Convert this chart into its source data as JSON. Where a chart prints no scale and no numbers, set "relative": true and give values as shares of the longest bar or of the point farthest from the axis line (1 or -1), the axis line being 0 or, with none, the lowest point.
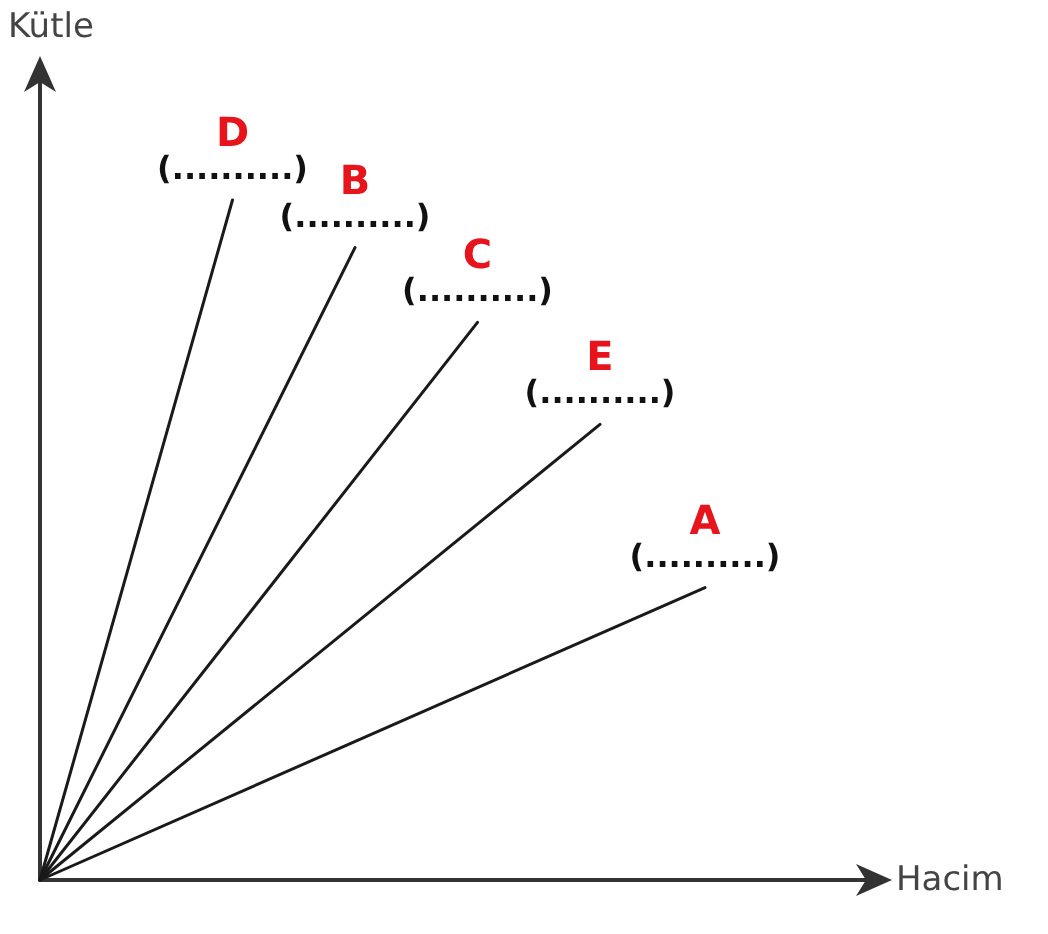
{
  "chart_data": {
    "type": "line",
    "relative": true,
    "xlabel": "Hacim",
    "ylabel": "Kütle",
    "marker": "none",
    "line_style": "solid",
    "grid": false,
    "legend": false,
    "categories": [
      null,
      null,
      null,
      null,
      null,
      null,
      null,
      null,
      null,
      null,
      null,
      null,
      null,
      null,
      null,
      null,
      null,
      null,
      null,
      null,
      null,
      null,
      null,
      null,
      null,
      null,
      null,
      null,
      null,
      null,
      null,
      null,
      null,
      null,
      null,
      null,
      null,
      null,
      null,
      null,
      null,
      null,
      null,
      null,
      null,
      null,
      null,
      null,
      null
    ],
    "series": [
      {
        "name": "D",
        "color": "#1a1a1a",
        "values": [
          0,
          null,
          null,
          null,
          null,
          null,
          null,
          null,
          null,
          null,
          null,
          1,
          null,
          null,
          null,
          null,
          null,
          null,
          null,
          null,
          null,
          null,
          null,
          null,
          null,
          null,
          null,
          null,
          null,
          null,
          null,
          null,
          null,
          null,
          null,
          null,
          null,
          null,
          null,
          null,
          null,
          null,
          null,
          null,
          null,
          null,
          null,
          null,
          null
        ]
      },
      {
        "name": "B",
        "color": "#1a1a1a",
        "values": [
          0,
          null,
          null,
          null,
          null,
          null,
          null,
          null,
          null,
          null,
          null,
          null,
          null,
          null,
          null,
          null,
          null,
          null,
          0.93,
          null,
          null,
          null,
          null,
          null,
          null,
          null,
          null,
          null,
          null,
          null,
          null,
          null,
          null,
          null,
          null,
          null,
          null,
          null,
          null,
          null,
          null,
          null,
          null,
          null,
          null,
          null,
          null,
          null,
          null
        ]
      },
      {
        "name": "C",
        "color": "#1a1a1a",
        "values": [
          0,
          null,
          null,
          null,
          null,
          null,
          null,
          null,
          null,
          null,
          null,
          null,
          null,
          null,
          null,
          null,
          null,
          null,
          null,
          null,
          null,
          null,
          null,
          null,
          null,
          0.82,
          null,
          null,
          null,
          null,
          null,
          null,
          null,
          null,
          null,
          null,
          null,
          null,
          null,
          null,
          null,
          null,
          null,
          null,
          null,
          null,
          null,
          null,
          null
        ]
      },
      {
        "name": "E",
        "color": "#1a1a1a",
        "values": [
          0,
          null,
          null,
          null,
          null,
          null,
          null,
          null,
          null,
          null,
          null,
          null,
          null,
          null,
          null,
          null,
          null,
          null,
          null,
          null,
          null,
          null,
          null,
          null,
          null,
          null,
          null,
          null,
          null,
          null,
          null,
          null,
          0.67,
          null,
          null,
          null,
          null,
          null,
          null,
          null,
          null,
          null,
          null,
          null,
          null,
          null,
          null,
          null,
          null
        ]
      },
      {
        "name": "A",
        "color": "#1a1a1a",
        "values": [
          0,
          null,
          null,
          null,
          null,
          null,
          null,
          null,
          null,
          null,
          null,
          null,
          null,
          null,
          null,
          null,
          null,
          null,
          null,
          null,
          null,
          null,
          null,
          null,
          null,
          null,
          null,
          null,
          null,
          null,
          null,
          null,
          null,
          null,
          null,
          null,
          null,
          null,
          0.43,
          null,
          null,
          null,
          null,
          null,
          null,
          null,
          null,
          null,
          null
        ]
      }
    ],
    "annotations": [
      "(..........)",
      "(..........)",
      "(..........)",
      "(..........)",
      "(..........)"
    ]
  }
}
